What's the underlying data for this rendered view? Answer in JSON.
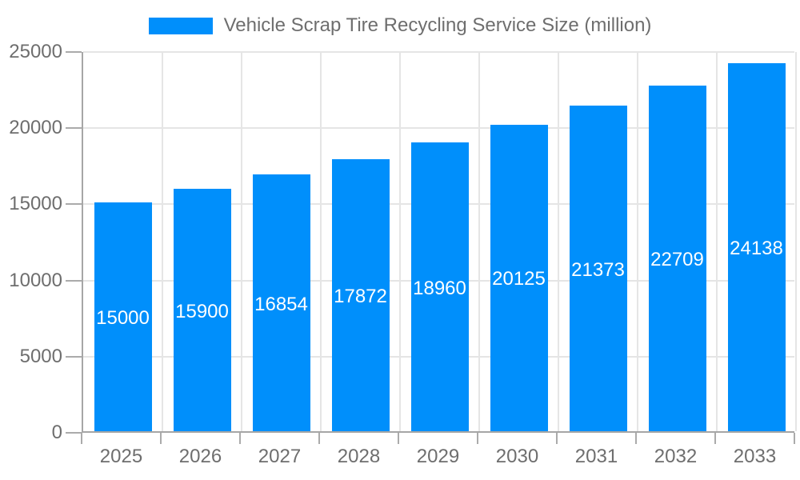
{
  "chart_data": {
    "type": "bar",
    "title": "Vehicle Scrap Tire Recycling Service Size (million)",
    "legend": {
      "position": "top",
      "entries": [
        "Vehicle Scrap Tire Recycling Service Size (million)"
      ]
    },
    "categories": [
      "2025",
      "2026",
      "2027",
      "2028",
      "2029",
      "2030",
      "2031",
      "2032",
      "2033"
    ],
    "series": [
      {
        "name": "Vehicle Scrap Tire Recycling Service Size (million)",
        "values": [
          15000,
          15900,
          16854,
          17872,
          18960,
          20125,
          21373,
          22709,
          24138
        ]
      }
    ],
    "data_labels": [
      "15000",
      "15900",
      "16854",
      "17872",
      "18960",
      "20125",
      "21373",
      "22709",
      "24138"
    ],
    "xlabel": "",
    "ylabel": "",
    "ylim": [
      0,
      25000
    ],
    "y_ticks": [
      0,
      5000,
      10000,
      15000,
      20000,
      25000
    ],
    "y_tick_labels": [
      "0",
      "5000",
      "10000",
      "15000",
      "20000",
      "25000"
    ],
    "grid": true,
    "colors": {
      "bar": "#008ffb",
      "bar_label_text": "#ffffff",
      "axis_text": "#6e6e6e",
      "axis_line": "#a6a6a6",
      "tick_mark": "#ababab",
      "gridline": "#e5e5e5",
      "background": "#ffffff"
    }
  }
}
